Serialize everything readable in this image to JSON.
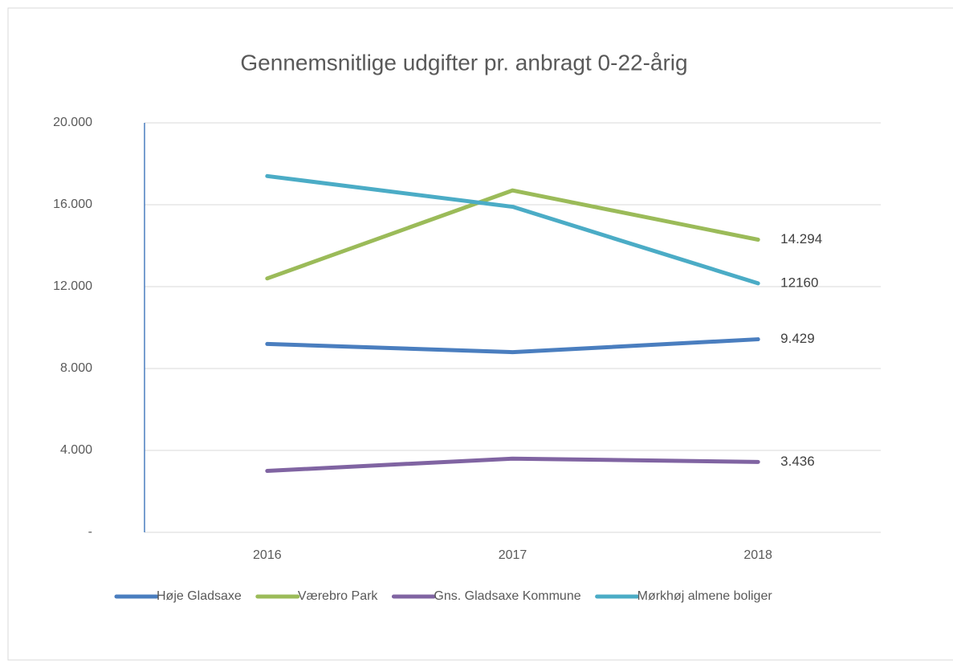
{
  "chart_data": {
    "type": "line",
    "title": "Gennemsnitlige udgifter pr. anbragt 0-22-årig",
    "categories": [
      "2016",
      "2017",
      "2018"
    ],
    "series": [
      {
        "name": "Høje Gladsaxe",
        "color": "#4a7ebf",
        "values": [
          9200,
          8800,
          9429
        ],
        "value_labels": [
          null,
          null,
          "9.429"
        ]
      },
      {
        "name": "Værebro Park",
        "color": "#9bbb59",
        "values": [
          12400,
          16700,
          14294
        ],
        "value_labels": [
          null,
          null,
          "14.294"
        ]
      },
      {
        "name": "Gns. Gladsaxe Kommune",
        "color": "#8064a2",
        "values": [
          3000,
          3600,
          3436
        ],
        "value_labels": [
          null,
          null,
          "3.436"
        ]
      },
      {
        "name": "Mørkhøj almene boliger",
        "color": "#4bacc6",
        "values": [
          17400,
          15900,
          12160
        ],
        "value_labels": [
          null,
          null,
          "12160"
        ]
      }
    ],
    "ylim": [
      0,
      20000
    ],
    "yticks": [
      {
        "value": 0,
        "label": "-"
      },
      {
        "value": 4000,
        "label": "4.000"
      },
      {
        "value": 8000,
        "label": "8.000"
      },
      {
        "value": 12000,
        "label": "12.000"
      },
      {
        "value": 16000,
        "label": "16.000"
      },
      {
        "value": 20000,
        "label": "20.000"
      }
    ],
    "grid": true,
    "legend": "bottom"
  }
}
